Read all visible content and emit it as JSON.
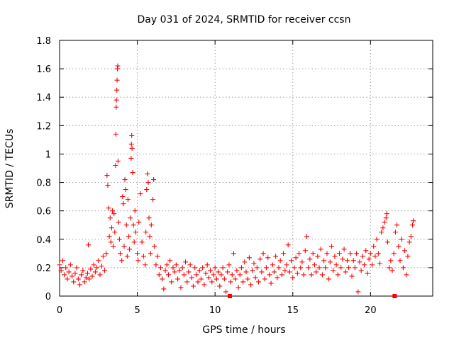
{
  "chart_data": {
    "type": "scatter",
    "title": "Day 031 of 2024, SRMTID for receiver ccsn",
    "xlabel": "GPS time / hours",
    "ylabel": "SRMTID / TECUs",
    "xlim": [
      0,
      24
    ],
    "ylim": [
      0,
      1.8
    ],
    "xticks": [
      0,
      5,
      10,
      15,
      20
    ],
    "xtick_labels": [
      "0",
      "5",
      "10",
      "15",
      "20"
    ],
    "yticks": [
      0,
      0.2,
      0.4,
      0.6,
      0.8,
      1.0,
      1.2,
      1.4,
      1.6,
      1.8
    ],
    "ytick_labels": [
      "0",
      "0.2",
      "0.4",
      "0.6",
      "0.8",
      "1",
      "1.2",
      "1.4",
      "1.6",
      "1.8"
    ],
    "grid": true,
    "marker": "plus",
    "color": "#ff0000",
    "series": [
      {
        "name": "SRMTID",
        "points": [
          [
            0.0,
            0.22
          ],
          [
            0.1,
            0.18
          ],
          [
            0.2,
            0.25
          ],
          [
            0.3,
            0.15
          ],
          [
            0.4,
            0.2
          ],
          [
            0.5,
            0.12
          ],
          [
            0.6,
            0.17
          ],
          [
            0.7,
            0.22
          ],
          [
            0.8,
            0.14
          ],
          [
            0.9,
            0.1
          ],
          [
            1.0,
            0.16
          ],
          [
            1.1,
            0.2
          ],
          [
            1.2,
            0.12
          ],
          [
            1.3,
            0.08
          ],
          [
            1.4,
            0.15
          ],
          [
            1.5,
            0.18
          ],
          [
            1.6,
            0.1
          ],
          [
            1.7,
            0.13
          ],
          [
            1.8,
            0.16
          ],
          [
            1.85,
            0.36
          ],
          [
            1.9,
            0.12
          ],
          [
            2.0,
            0.19
          ],
          [
            2.1,
            0.14
          ],
          [
            2.2,
            0.22
          ],
          [
            2.3,
            0.17
          ],
          [
            2.4,
            0.2
          ],
          [
            2.5,
            0.25
          ],
          [
            2.6,
            0.15
          ],
          [
            2.7,
            0.21
          ],
          [
            2.8,
            0.28
          ],
          [
            2.9,
            0.18
          ],
          [
            3.0,
            0.3
          ],
          [
            3.05,
            0.85
          ],
          [
            3.1,
            0.78
          ],
          [
            3.15,
            0.62
          ],
          [
            3.2,
            0.42
          ],
          [
            3.25,
            0.55
          ],
          [
            3.3,
            0.38
          ],
          [
            3.35,
            0.48
          ],
          [
            3.4,
            0.6
          ],
          [
            3.45,
            0.35
          ],
          [
            3.5,
            0.58
          ],
          [
            3.55,
            0.45
          ],
          [
            3.6,
            0.92
          ],
          [
            3.62,
            1.14
          ],
          [
            3.64,
            1.33
          ],
          [
            3.66,
            1.38
          ],
          [
            3.68,
            1.45
          ],
          [
            3.7,
            1.52
          ],
          [
            3.72,
            1.6
          ],
          [
            3.74,
            1.62
          ],
          [
            3.76,
            0.95
          ],
          [
            3.8,
            0.52
          ],
          [
            3.85,
            0.4
          ],
          [
            3.9,
            0.3
          ],
          [
            4.0,
            0.25
          ],
          [
            4.05,
            0.7
          ],
          [
            4.1,
            0.65
          ],
          [
            4.15,
            0.35
          ],
          [
            4.2,
            0.82
          ],
          [
            4.25,
            0.75
          ],
          [
            4.3,
            0.5
          ],
          [
            4.35,
            0.28
          ],
          [
            4.4,
            0.68
          ],
          [
            4.45,
            0.42
          ],
          [
            4.5,
            0.33
          ],
          [
            4.55,
            0.55
          ],
          [
            4.6,
            0.97
          ],
          [
            4.62,
            1.07
          ],
          [
            4.64,
            1.13
          ],
          [
            4.66,
            1.04
          ],
          [
            4.7,
            0.87
          ],
          [
            4.75,
            0.5
          ],
          [
            4.8,
            0.38
          ],
          [
            4.85,
            0.6
          ],
          [
            4.9,
            0.45
          ],
          [
            5.0,
            0.3
          ],
          [
            5.05,
            0.25
          ],
          [
            5.1,
            0.52
          ],
          [
            5.2,
            0.72
          ],
          [
            5.3,
            0.38
          ],
          [
            5.4,
            0.28
          ],
          [
            5.5,
            0.22
          ],
          [
            5.55,
            0.45
          ],
          [
            5.6,
            0.75
          ],
          [
            5.65,
            0.86
          ],
          [
            5.7,
            0.8
          ],
          [
            5.75,
            0.55
          ],
          [
            5.8,
            0.42
          ],
          [
            5.85,
            0.3
          ],
          [
            5.9,
            0.5
          ],
          [
            6.0,
            0.68
          ],
          [
            6.05,
            0.82
          ],
          [
            6.1,
            0.35
          ],
          [
            6.2,
            0.22
          ],
          [
            6.3,
            0.28
          ],
          [
            6.4,
            0.15
          ],
          [
            6.5,
            0.2
          ],
          [
            6.6,
            0.12
          ],
          [
            6.7,
            0.05
          ],
          [
            6.8,
            0.18
          ],
          [
            6.9,
            0.22
          ],
          [
            7.0,
            0.15
          ],
          [
            7.1,
            0.25
          ],
          [
            7.2,
            0.1
          ],
          [
            7.3,
            0.2
          ],
          [
            7.4,
            0.17
          ],
          [
            7.5,
            0.22
          ],
          [
            7.6,
            0.12
          ],
          [
            7.7,
            0.18
          ],
          [
            7.8,
            0.06
          ],
          [
            7.9,
            0.2
          ],
          [
            8.0,
            0.15
          ],
          [
            8.1,
            0.24
          ],
          [
            8.2,
            0.1
          ],
          [
            8.3,
            0.17
          ],
          [
            8.4,
            0.22
          ],
          [
            8.5,
            0.13
          ],
          [
            8.6,
            0.07
          ],
          [
            8.7,
            0.2
          ],
          [
            8.8,
            0.15
          ],
          [
            8.9,
            0.1
          ],
          [
            9.0,
            0.18
          ],
          [
            9.1,
            0.12
          ],
          [
            9.2,
            0.2
          ],
          [
            9.3,
            0.08
          ],
          [
            9.4,
            0.16
          ],
          [
            9.5,
            0.22
          ],
          [
            9.6,
            0.13
          ],
          [
            9.7,
            0.18
          ],
          [
            9.8,
            0.1
          ],
          [
            9.9,
            0.15
          ],
          [
            10.0,
            0.2
          ],
          [
            10.1,
            0.12
          ],
          [
            10.2,
            0.17
          ],
          [
            10.3,
            0.07
          ],
          [
            10.4,
            0.15
          ],
          [
            10.5,
            0.2
          ],
          [
            10.6,
            0.12
          ],
          [
            10.7,
            0.03
          ],
          [
            10.8,
            0.17
          ],
          [
            10.9,
            0.22
          ],
          [
            11.0,
            0.1
          ],
          [
            11.1,
            0.15
          ],
          [
            11.2,
            0.3
          ],
          [
            11.3,
            0.12
          ],
          [
            11.4,
            0.18
          ],
          [
            11.5,
            0.06
          ],
          [
            11.6,
            0.15
          ],
          [
            11.7,
            0.2
          ],
          [
            11.8,
            0.1
          ],
          [
            11.9,
            0.24
          ],
          [
            12.0,
            0.17
          ],
          [
            12.1,
            0.12
          ],
          [
            12.2,
            0.27
          ],
          [
            12.3,
            0.08
          ],
          [
            12.4,
            0.18
          ],
          [
            12.5,
            0.23
          ],
          [
            12.6,
            0.13
          ],
          [
            12.7,
            0.2
          ],
          [
            12.8,
            0.1
          ],
          [
            12.9,
            0.26
          ],
          [
            13.0,
            0.17
          ],
          [
            13.1,
            0.3
          ],
          [
            13.2,
            0.12
          ],
          [
            13.3,
            0.2
          ],
          [
            13.4,
            0.27
          ],
          [
            13.5,
            0.15
          ],
          [
            13.6,
            0.09
          ],
          [
            13.7,
            0.22
          ],
          [
            13.8,
            0.17
          ],
          [
            13.9,
            0.28
          ],
          [
            14.0,
            0.13
          ],
          [
            14.1,
            0.2
          ],
          [
            14.2,
            0.25
          ],
          [
            14.3,
            0.15
          ],
          [
            14.4,
            0.3
          ],
          [
            14.5,
            0.18
          ],
          [
            14.6,
            0.22
          ],
          [
            14.7,
            0.36
          ],
          [
            14.8,
            0.17
          ],
          [
            14.9,
            0.25
          ],
          [
            15.0,
            0.13
          ],
          [
            15.1,
            0.2
          ],
          [
            15.2,
            0.27
          ],
          [
            15.3,
            0.16
          ],
          [
            15.4,
            0.3
          ],
          [
            15.5,
            0.2
          ],
          [
            15.6,
            0.24
          ],
          [
            15.7,
            0.15
          ],
          [
            15.8,
            0.32
          ],
          [
            15.9,
            0.42
          ],
          [
            16.0,
            0.2
          ],
          [
            16.1,
            0.26
          ],
          [
            16.2,
            0.15
          ],
          [
            16.3,
            0.3
          ],
          [
            16.4,
            0.22
          ],
          [
            16.5,
            0.17
          ],
          [
            16.6,
            0.28
          ],
          [
            16.7,
            0.2
          ],
          [
            16.8,
            0.33
          ],
          [
            16.9,
            0.15
          ],
          [
            17.0,
            0.25
          ],
          [
            17.1,
            0.2
          ],
          [
            17.2,
            0.3
          ],
          [
            17.3,
            0.12
          ],
          [
            17.4,
            0.24
          ],
          [
            17.5,
            0.35
          ],
          [
            17.6,
            0.18
          ],
          [
            17.7,
            0.28
          ],
          [
            17.8,
            0.22
          ],
          [
            17.9,
            0.15
          ],
          [
            18.0,
            0.3
          ],
          [
            18.1,
            0.2
          ],
          [
            18.2,
            0.26
          ],
          [
            18.3,
            0.33
          ],
          [
            18.4,
            0.17
          ],
          [
            18.5,
            0.25
          ],
          [
            18.6,
            0.2
          ],
          [
            18.7,
            0.3
          ],
          [
            18.8,
            0.14
          ],
          [
            18.9,
            0.25
          ],
          [
            19.0,
            0.2
          ],
          [
            19.1,
            0.3
          ],
          [
            19.2,
            0.03
          ],
          [
            19.3,
            0.24
          ],
          [
            19.4,
            0.18
          ],
          [
            19.5,
            0.28
          ],
          [
            19.6,
            0.22
          ],
          [
            19.7,
            0.32
          ],
          [
            19.8,
            0.16
          ],
          [
            19.9,
            0.26
          ],
          [
            20.0,
            0.3
          ],
          [
            20.1,
            0.22
          ],
          [
            20.2,
            0.35
          ],
          [
            20.3,
            0.28
          ],
          [
            20.4,
            0.4
          ],
          [
            20.5,
            0.3
          ],
          [
            20.6,
            0.23
          ],
          [
            20.7,
            0.45
          ],
          [
            20.8,
            0.48
          ],
          [
            20.9,
            0.52
          ],
          [
            21.0,
            0.55
          ],
          [
            21.05,
            0.58
          ],
          [
            21.1,
            0.38
          ],
          [
            21.2,
            0.2
          ],
          [
            21.3,
            0.25
          ],
          [
            21.4,
            0.18
          ],
          [
            21.5,
            0.3
          ],
          [
            21.6,
            0.45
          ],
          [
            21.7,
            0.5
          ],
          [
            21.8,
            0.35
          ],
          [
            21.9,
            0.25
          ],
          [
            22.0,
            0.4
          ],
          [
            22.1,
            0.2
          ],
          [
            22.2,
            0.32
          ],
          [
            22.3,
            0.15
          ],
          [
            22.4,
            0.28
          ],
          [
            22.5,
            0.38
          ],
          [
            22.6,
            0.42
          ],
          [
            22.7,
            0.5
          ],
          [
            22.75,
            0.53
          ]
        ]
      }
    ],
    "baseline_markers": [
      10.95,
      21.55
    ]
  }
}
